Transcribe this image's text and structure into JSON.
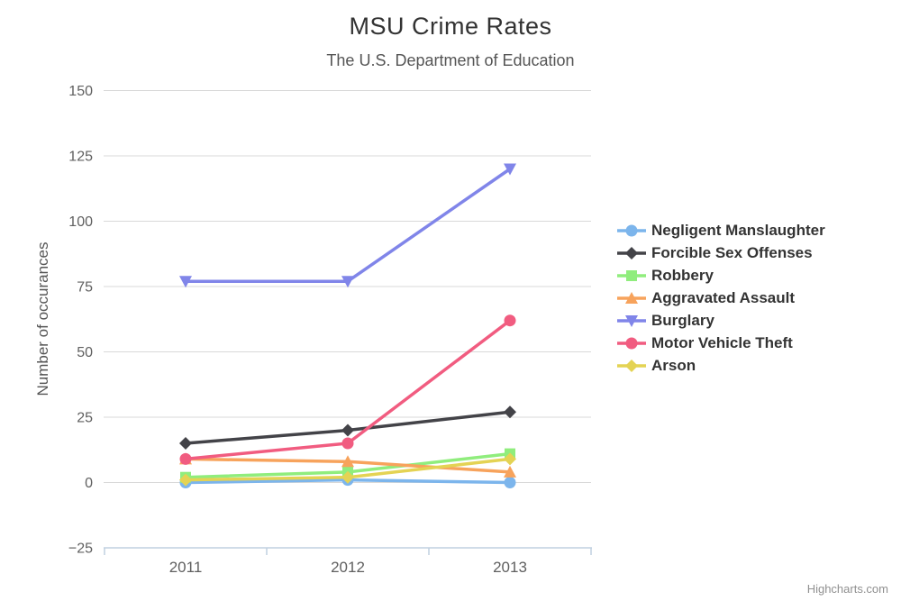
{
  "title": "MSU Crime Rates",
  "subtitle": "The U.S. Department of Education",
  "credits": "Highcharts.com",
  "colors": {
    "title_text": "#333333",
    "subtitle_text": "#555555",
    "axis_label_text": "#606060",
    "gridline": "#d8d8d8",
    "x_axis_line": "#c0d0e0",
    "legend_text": "#333333",
    "credits_text": "#909090"
  },
  "chart_data": {
    "type": "line",
    "title": "MSU Crime Rates",
    "subtitle": "The U.S. Department of Education",
    "categories": [
      "2011",
      "2012",
      "2013"
    ],
    "xlabel": "",
    "ylabel": "Number of occurances",
    "ylim": [
      -25,
      150
    ],
    "ytick_interval": 25,
    "grid": true,
    "legend_position": "right",
    "series": [
      {
        "name": "Negligent Manslaughter",
        "color": "#7cb5ec",
        "marker": "circle",
        "values": [
          0,
          1,
          0
        ]
      },
      {
        "name": "Forcible Sex Offenses",
        "color": "#434348",
        "marker": "diamond",
        "values": [
          15,
          20,
          27
        ]
      },
      {
        "name": "Robbery",
        "color": "#90ed7d",
        "marker": "square",
        "values": [
          2,
          4,
          11
        ]
      },
      {
        "name": "Aggravated Assault",
        "color": "#f7a35c",
        "marker": "triangle",
        "values": [
          9,
          8,
          4
        ]
      },
      {
        "name": "Burglary",
        "color": "#8085e9",
        "marker": "triangle-down",
        "values": [
          77,
          77,
          120
        ]
      },
      {
        "name": "Motor Vehicle Theft",
        "color": "#f15c80",
        "marker": "circle",
        "values": [
          9,
          15,
          62
        ]
      },
      {
        "name": "Arson",
        "color": "#e4d354",
        "marker": "diamond",
        "values": [
          1,
          2,
          9
        ]
      }
    ]
  }
}
